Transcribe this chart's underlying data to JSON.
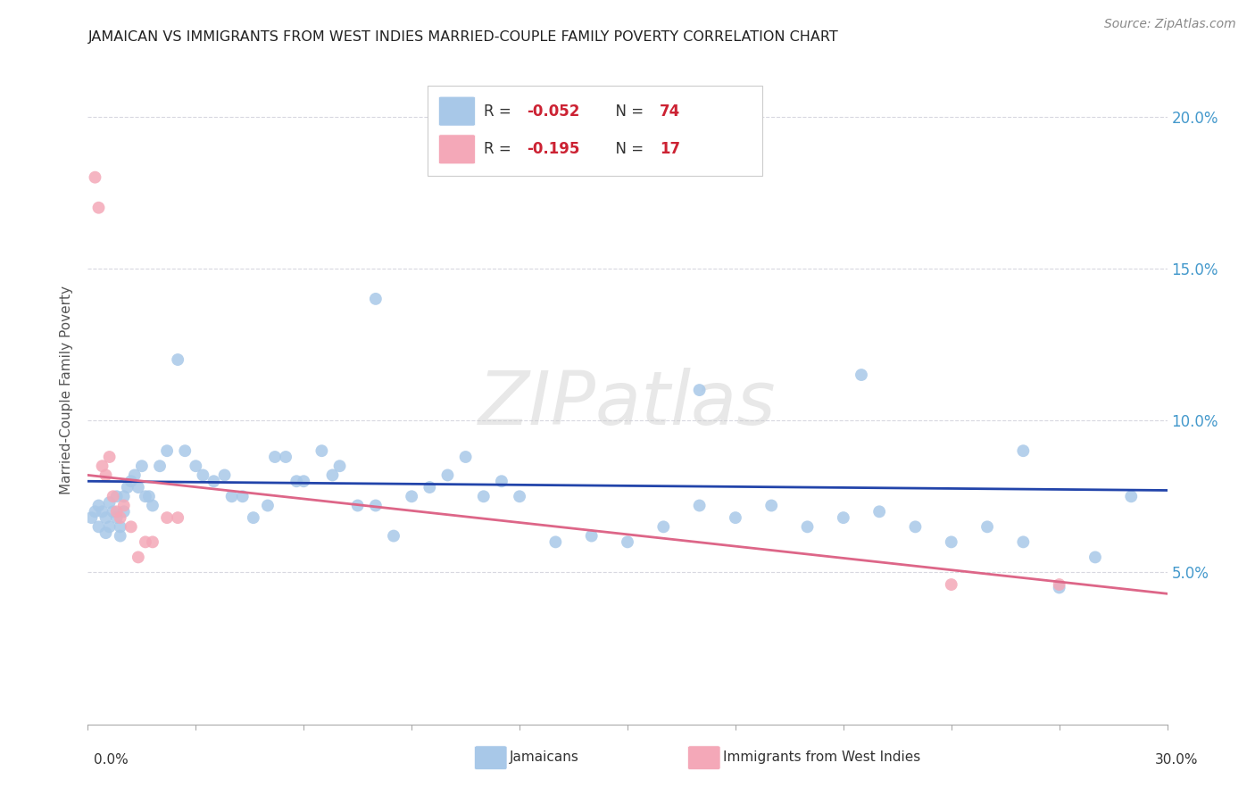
{
  "title": "JAMAICAN VS IMMIGRANTS FROM WEST INDIES MARRIED-COUPLE FAMILY POVERTY CORRELATION CHART",
  "source": "Source: ZipAtlas.com",
  "ylabel": "Married-Couple Family Poverty",
  "watermark": "ZIPatlas",
  "jamaicans_color": "#a8c8e8",
  "immigrants_color": "#f4a8b8",
  "trendline_jamaicans_color": "#2244aa",
  "trendline_immigrants_color": "#dd6688",
  "legend_j_color": "#a8c8e8",
  "legend_i_color": "#f4a8b8",
  "r_color": "#cc2233",
  "xlim": [
    0.0,
    0.3
  ],
  "ylim": [
    0.0,
    0.22
  ],
  "ytick_vals": [
    0.05,
    0.1,
    0.15,
    0.2
  ],
  "background_color": "#ffffff",
  "grid_color": "#d8d8e0",
  "jamaicans_x": [
    0.001,
    0.002,
    0.003,
    0.003,
    0.004,
    0.005,
    0.005,
    0.006,
    0.006,
    0.007,
    0.008,
    0.008,
    0.009,
    0.009,
    0.01,
    0.01,
    0.011,
    0.012,
    0.013,
    0.014,
    0.015,
    0.016,
    0.017,
    0.018,
    0.02,
    0.022,
    0.025,
    0.027,
    0.03,
    0.032,
    0.035,
    0.038,
    0.04,
    0.043,
    0.046,
    0.05,
    0.052,
    0.055,
    0.058,
    0.06,
    0.065,
    0.068,
    0.07,
    0.075,
    0.08,
    0.085,
    0.09,
    0.095,
    0.1,
    0.105,
    0.11,
    0.115,
    0.12,
    0.13,
    0.14,
    0.15,
    0.16,
    0.17,
    0.18,
    0.19,
    0.2,
    0.21,
    0.22,
    0.23,
    0.24,
    0.25,
    0.26,
    0.27,
    0.28,
    0.29,
    0.08,
    0.17,
    0.215,
    0.26
  ],
  "jamaicans_y": [
    0.068,
    0.07,
    0.072,
    0.065,
    0.07,
    0.068,
    0.063,
    0.073,
    0.065,
    0.07,
    0.075,
    0.068,
    0.065,
    0.062,
    0.075,
    0.07,
    0.078,
    0.08,
    0.082,
    0.078,
    0.085,
    0.075,
    0.075,
    0.072,
    0.085,
    0.09,
    0.12,
    0.09,
    0.085,
    0.082,
    0.08,
    0.082,
    0.075,
    0.075,
    0.068,
    0.072,
    0.088,
    0.088,
    0.08,
    0.08,
    0.09,
    0.082,
    0.085,
    0.072,
    0.072,
    0.062,
    0.075,
    0.078,
    0.082,
    0.088,
    0.075,
    0.08,
    0.075,
    0.06,
    0.062,
    0.06,
    0.065,
    0.072,
    0.068,
    0.072,
    0.065,
    0.068,
    0.07,
    0.065,
    0.06,
    0.065,
    0.06,
    0.045,
    0.055,
    0.075,
    0.14,
    0.11,
    0.115,
    0.09
  ],
  "immigrants_x": [
    0.002,
    0.003,
    0.004,
    0.005,
    0.006,
    0.007,
    0.008,
    0.009,
    0.01,
    0.012,
    0.014,
    0.016,
    0.018,
    0.022,
    0.025,
    0.24,
    0.27
  ],
  "immigrants_y": [
    0.18,
    0.17,
    0.085,
    0.082,
    0.088,
    0.075,
    0.07,
    0.068,
    0.072,
    0.065,
    0.055,
    0.06,
    0.06,
    0.068,
    0.068,
    0.046,
    0.046
  ]
}
